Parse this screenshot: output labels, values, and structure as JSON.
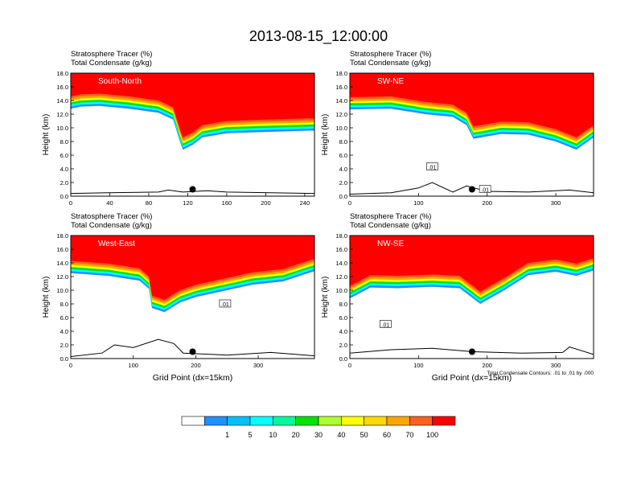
{
  "title": "2013-08-15_12:00:00",
  "chart_data": [
    {
      "type": "heatmap",
      "label": "South-North",
      "header_line1": "Stratosphere Tracer   (%)",
      "header_line2": "Total Condensate   (g/kg)",
      "ylabel": "Height (km)",
      "xlabel": "",
      "xlim": [
        0,
        250
      ],
      "ylim": [
        0,
        18
      ],
      "xticks": [
        0,
        40,
        80,
        120,
        160,
        200,
        240
      ],
      "yticks": [
        0,
        2,
        4,
        6,
        8,
        10,
        12,
        14,
        16,
        18
      ],
      "tropopause": [
        [
          0,
          14.6
        ],
        [
          10,
          14.9
        ],
        [
          30,
          15.0
        ],
        [
          60,
          14.6
        ],
        [
          90,
          14.0
        ],
        [
          105,
          13.0
        ],
        [
          112,
          9.8
        ],
        [
          115,
          8.6
        ],
        [
          125,
          9.3
        ],
        [
          135,
          10.4
        ],
        [
          160,
          11.0
        ],
        [
          200,
          11.2
        ],
        [
          250,
          11.4
        ]
      ],
      "terrain": [
        [
          0,
          0.4
        ],
        [
          40,
          0.5
        ],
        [
          90,
          0.6
        ],
        [
          100,
          0.9
        ],
        [
          115,
          0.6
        ],
        [
          140,
          0.8
        ],
        [
          160,
          0.6
        ],
        [
          250,
          0.4
        ]
      ],
      "marker": [
        125,
        1.0
      ],
      "contour_labels": []
    },
    {
      "type": "heatmap",
      "label": "SW-NE",
      "header_line1": "Stratosphere Tracer   (%)",
      "header_line2": "Total Condensate   (g/kg)",
      "ylabel": "Height (km)",
      "xlabel": "",
      "xlim": [
        0,
        355
      ],
      "ylim": [
        0,
        18
      ],
      "xticks": [
        0,
        100,
        200,
        300
      ],
      "yticks": [
        0,
        2,
        4,
        6,
        8,
        10,
        12,
        14,
        16,
        18
      ],
      "tropopause": [
        [
          0,
          14.5
        ],
        [
          60,
          14.6
        ],
        [
          110,
          13.8
        ],
        [
          150,
          13.4
        ],
        [
          170,
          12.2
        ],
        [
          180,
          10.2
        ],
        [
          220,
          10.9
        ],
        [
          260,
          10.8
        ],
        [
          300,
          9.8
        ],
        [
          330,
          8.6
        ],
        [
          355,
          10.4
        ]
      ],
      "terrain": [
        [
          0,
          0.3
        ],
        [
          60,
          0.5
        ],
        [
          100,
          1.2
        ],
        [
          120,
          2.0
        ],
        [
          150,
          0.6
        ],
        [
          170,
          1.5
        ],
        [
          200,
          0.7
        ],
        [
          260,
          0.6
        ],
        [
          320,
          0.9
        ],
        [
          355,
          0.5
        ]
      ],
      "marker": [
        178,
        1.0
      ],
      "contour_labels": [
        {
          "text": ".01",
          "x": 120,
          "y": 4.3
        },
        {
          "text": ".01",
          "x": 197,
          "y": 1.0
        }
      ]
    },
    {
      "type": "heatmap",
      "label": "West-East",
      "header_line1": "Stratosphere Tracer   (%)",
      "header_line2": "Total Condensate   (g/kg)",
      "ylabel": "Height (km)",
      "xlabel": "Grid Point (dx=15km)",
      "xlim": [
        0,
        390
      ],
      "ylim": [
        0,
        18
      ],
      "xticks": [
        0,
        100,
        200,
        300
      ],
      "yticks": [
        0,
        2,
        4,
        6,
        8,
        10,
        12,
        14,
        16,
        18
      ],
      "tropopause": [
        [
          0,
          14.3
        ],
        [
          60,
          13.9
        ],
        [
          110,
          13.2
        ],
        [
          125,
          12.0
        ],
        [
          130,
          9.2
        ],
        [
          150,
          8.6
        ],
        [
          175,
          10.0
        ],
        [
          200,
          10.8
        ],
        [
          250,
          11.8
        ],
        [
          290,
          12.6
        ],
        [
          340,
          13.1
        ],
        [
          390,
          14.6
        ]
      ],
      "terrain": [
        [
          0,
          0.3
        ],
        [
          50,
          0.8
        ],
        [
          70,
          2.0
        ],
        [
          100,
          1.6
        ],
        [
          140,
          2.8
        ],
        [
          165,
          2.2
        ],
        [
          180,
          0.8
        ],
        [
          250,
          0.5
        ],
        [
          320,
          0.9
        ],
        [
          390,
          0.4
        ]
      ],
      "marker": [
        195,
        1.0
      ],
      "contour_labels": [
        {
          "text": ".01",
          "x": 247,
          "y": 8.0
        }
      ]
    },
    {
      "type": "heatmap",
      "label": "NW-SE",
      "header_line1": "Stratosphere Tracer   (%)",
      "header_line2": "Total Condensate   (g/kg)",
      "ylabel": "Height (km)",
      "xlabel": "Grid Point (dx=15km)",
      "xlim": [
        0,
        355
      ],
      "ylim": [
        0,
        18
      ],
      "xticks": [
        0,
        100,
        200,
        300
      ],
      "yticks": [
        0,
        2,
        4,
        6,
        8,
        10,
        12,
        14,
        16,
        18
      ],
      "tropopause": [
        [
          0,
          10.6
        ],
        [
          30,
          12.2
        ],
        [
          70,
          12.1
        ],
        [
          120,
          12.3
        ],
        [
          160,
          12.1
        ],
        [
          190,
          9.8
        ],
        [
          225,
          11.8
        ],
        [
          260,
          14.0
        ],
        [
          300,
          14.5
        ],
        [
          330,
          13.9
        ],
        [
          355,
          14.7
        ]
      ],
      "terrain": [
        [
          0,
          0.8
        ],
        [
          60,
          1.3
        ],
        [
          120,
          1.5
        ],
        [
          180,
          1.0
        ],
        [
          250,
          0.8
        ],
        [
          310,
          0.9
        ],
        [
          320,
          1.7
        ],
        [
          355,
          0.6
        ]
      ],
      "marker": [
        178,
        1.0
      ],
      "contour_labels": [
        {
          "text": ".01",
          "x": 52,
          "y": 5.0
        }
      ],
      "footnote": "Total Condensate Contours: .01 to .01 by .000"
    }
  ],
  "colorbar": {
    "colors": [
      "#ffffff",
      "#1e90ff",
      "#00bfff",
      "#00ffff",
      "#00fa9a",
      "#00e400",
      "#adff2f",
      "#ffff00",
      "#ffd700",
      "#ffa500",
      "#ff6020",
      "#ff0000"
    ],
    "labels": [
      "1",
      "5",
      "10",
      "20",
      "30",
      "40",
      "50",
      "60",
      "70",
      "100"
    ]
  }
}
